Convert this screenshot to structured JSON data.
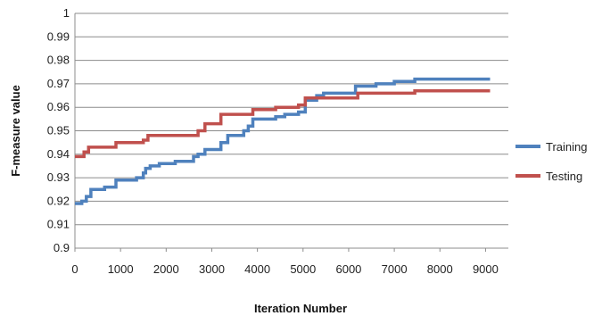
{
  "chart_data": {
    "type": "line",
    "title": "",
    "xlabel": "Iteration Number",
    "ylabel": "F-measure value",
    "xlim": [
      0,
      9500
    ],
    "ylim": [
      0.9,
      1.0
    ],
    "xticks": [
      "0",
      "1000",
      "2000",
      "3000",
      "4000",
      "5000",
      "6000",
      "7000",
      "8000",
      "9000"
    ],
    "yticks": [
      "0.9",
      "0.91",
      "0.92",
      "0.93",
      "0.94",
      "0.95",
      "0.96",
      "0.97",
      "0.98",
      "0.99",
      "1"
    ],
    "grid": "horizontal",
    "legend": "right",
    "series": [
      {
        "name": "Training",
        "color": "#4f81bd",
        "x": [
          0,
          150,
          250,
          350,
          650,
          900,
          1350,
          1500,
          1550,
          1650,
          1850,
          2200,
          2600,
          2700,
          2850,
          3200,
          3350,
          3700,
          3800,
          3900,
          4400,
          4600,
          4900,
          5050,
          5300,
          5450,
          6150,
          6600,
          6800,
          7000,
          7250,
          7450,
          9100
        ],
        "y": [
          0.919,
          0.92,
          0.922,
          0.925,
          0.926,
          0.929,
          0.93,
          0.932,
          0.934,
          0.935,
          0.936,
          0.937,
          0.939,
          0.94,
          0.942,
          0.945,
          0.948,
          0.95,
          0.952,
          0.955,
          0.956,
          0.957,
          0.958,
          0.963,
          0.965,
          0.966,
          0.969,
          0.97,
          0.97,
          0.971,
          0.971,
          0.972,
          0.972
        ]
      },
      {
        "name": "Testing",
        "color": "#c0504d",
        "x": [
          0,
          200,
          300,
          900,
          1500,
          1600,
          2600,
          2700,
          2850,
          3200,
          3350,
          3900,
          4400,
          4900,
          5050,
          6200,
          7450,
          9100
        ],
        "y": [
          0.939,
          0.941,
          0.943,
          0.945,
          0.946,
          0.948,
          0.948,
          0.95,
          0.953,
          0.957,
          0.957,
          0.959,
          0.96,
          0.961,
          0.964,
          0.966,
          0.967,
          0.967
        ]
      }
    ]
  }
}
